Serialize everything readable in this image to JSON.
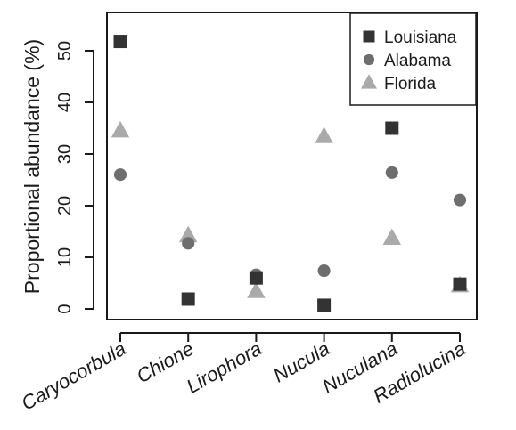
{
  "chart_data": {
    "type": "scatter",
    "ylabel": "Proportional abundance (%)",
    "categories": [
      "Caryocorbula",
      "Chione",
      "Lirophora",
      "Nucula",
      "Nuculana",
      "Radiolucina"
    ],
    "y_ticks": [
      "0",
      "10",
      "20",
      "30",
      "40",
      "50"
    ],
    "ylim": [
      -2,
      58
    ],
    "legend_position": "top-right",
    "series": [
      {
        "name": "Louisiana",
        "marker": "square",
        "color": "#333333",
        "values": [
          51.8,
          1.9,
          6.0,
          0.7,
          35.0,
          4.8
        ]
      },
      {
        "name": "Alabama",
        "marker": "circle",
        "color": "#6e6e6e",
        "values": [
          26.0,
          12.7,
          6.6,
          7.4,
          26.4,
          21.1
        ]
      },
      {
        "name": "Florida",
        "marker": "triangle",
        "color": "#aaaaaa",
        "values": [
          34.5,
          14.2,
          3.4,
          33.4,
          13.7,
          4.5
        ]
      }
    ]
  }
}
